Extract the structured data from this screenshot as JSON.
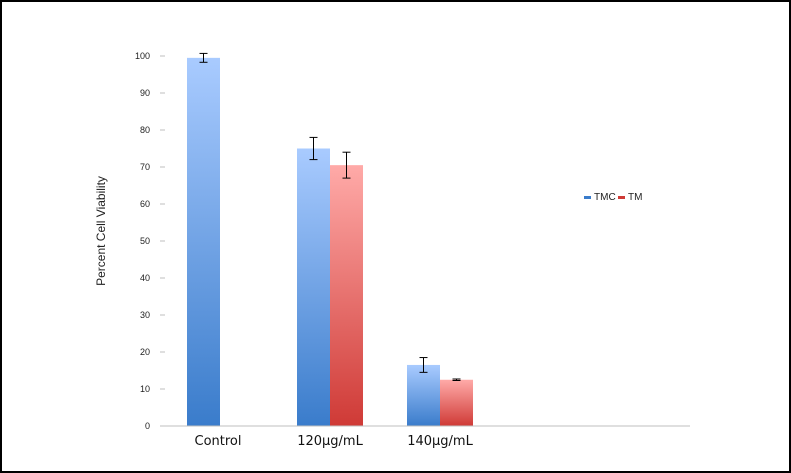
{
  "chart_data": {
    "type": "bar",
    "categories": [
      "Control",
      "120µg/mL",
      "140µg/mL"
    ],
    "series": [
      {
        "name": "TMC",
        "values": [
          99.5,
          75,
          16.5
        ],
        "errors": [
          1.2,
          3.0,
          2.0
        ],
        "color_top": "#a9cbff",
        "color_bottom": "#3a7ccb"
      },
      {
        "name": "TM",
        "values": [
          null,
          70.5,
          12.5
        ],
        "errors": [
          null,
          3.5,
          0.2
        ],
        "color_top": "#ffaaa8",
        "color_bottom": "#cf3a36"
      }
    ],
    "title": "",
    "xlabel": "",
    "ylabel": "Percent Cell Viability",
    "ylim": [
      0,
      100
    ],
    "yticks": [
      "0",
      "10",
      "20",
      "30",
      "40",
      "50",
      "60",
      "70",
      "80",
      "90",
      "100"
    ],
    "grid": false,
    "legend_position": "right"
  }
}
